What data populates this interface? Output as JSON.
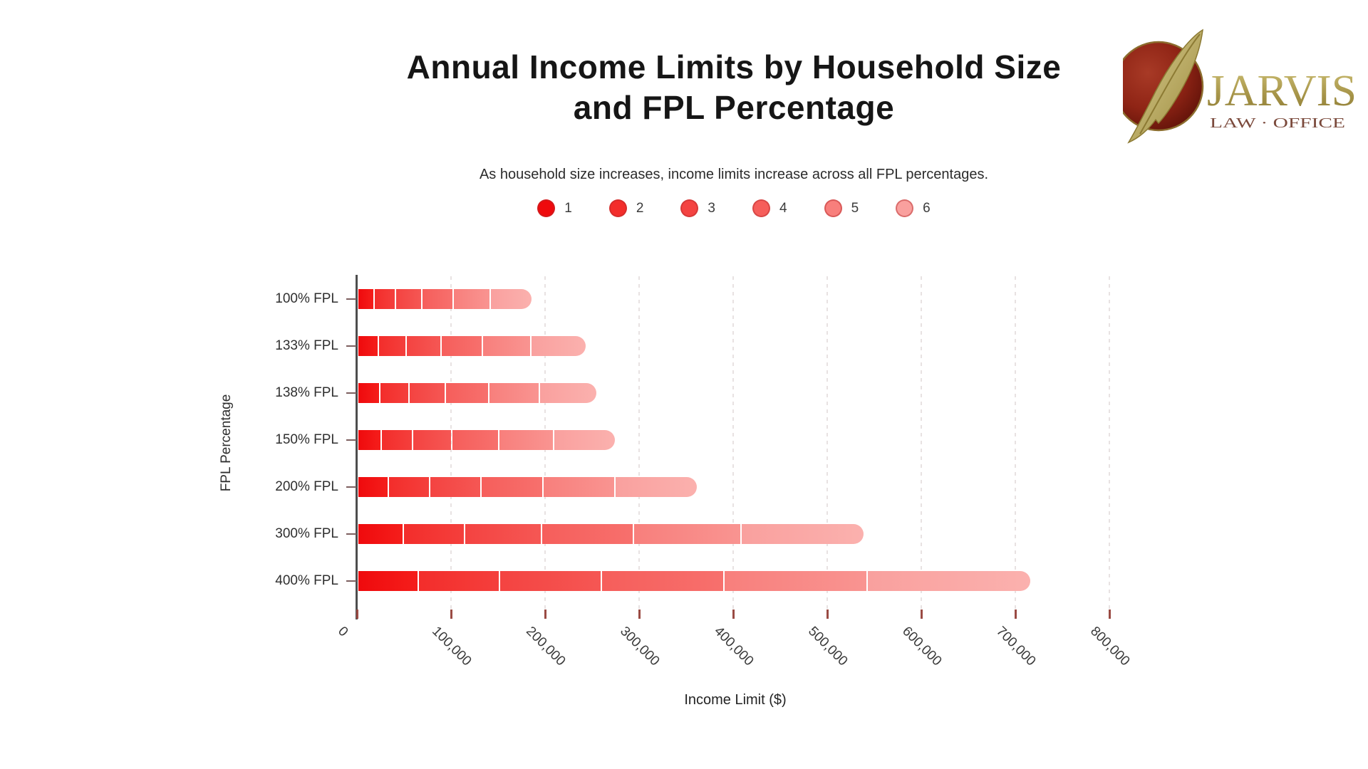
{
  "header": {
    "title_line1": "Annual Income Limits by Household Size",
    "title_line2": "and FPL Percentage",
    "subtitle": "As household size increases, income limits increase across all FPL percentages."
  },
  "logo": {
    "name": "JARVIS",
    "tagline": "LAW · OFFICE",
    "gold": "#a8964a",
    "gold_light": "#cdbf74",
    "gold_dark": "#8c7a33",
    "circle_red": "#8f2415",
    "circle_red_dark": "#5c1108",
    "tagline_color": "#7b4a3c"
  },
  "chart_data": {
    "type": "bar",
    "orientation": "horizontal",
    "stacked": true,
    "title": "Annual Income Limits by Household Size and FPL Percentage",
    "subtitle": "As household size increases, income limits increase across all FPL percentages.",
    "xlabel": "Income Limit ($)",
    "ylabel": "FPL Percentage",
    "xlim": [
      0,
      800000
    ],
    "x_tick_labels": [
      "0",
      "100,000",
      "200,000",
      "300,000",
      "400,000",
      "500,000",
      "600,000",
      "700,000",
      "800,000"
    ],
    "grid": "vertical-dashed",
    "legend_position": "top-center",
    "categories": [
      "100% FPL",
      "133% FPL",
      "138% FPL",
      "150% FPL",
      "200% FPL",
      "300% FPL",
      "400% FPL"
    ],
    "series": [
      {
        "name": "1",
        "color": "#ef0a0d",
        "color2": "#f51e1b",
        "values": [
          15650,
          20815,
          21597,
          23475,
          31300,
          46950,
          62600
        ]
      },
      {
        "name": "2",
        "color": "#f32d2b",
        "color2": "#f43f3c",
        "values": [
          21150,
          28130,
          29187,
          31725,
          42300,
          63450,
          84600
        ]
      },
      {
        "name": "3",
        "color": "#f44341",
        "color2": "#f55754",
        "values": [
          26650,
          35445,
          36777,
          39975,
          53300,
          79950,
          106600
        ]
      },
      {
        "name": "4",
        "color": "#f65e5b",
        "color2": "#f7706d",
        "values": [
          32150,
          42760,
          44367,
          48225,
          64300,
          96450,
          128600
        ]
      },
      {
        "name": "5",
        "color": "#f87f7c",
        "color2": "#f99491",
        "values": [
          37650,
          50075,
          51957,
          56475,
          75300,
          112950,
          150600
        ]
      },
      {
        "name": "6",
        "color": "#f9a09e",
        "color2": "#fbb1ae",
        "values": [
          43150,
          57390,
          59547,
          64725,
          86300,
          129450,
          172600
        ]
      }
    ],
    "colors": {
      "axis": "#4e4e4e",
      "tick": "#9a4b44",
      "y_tick": "#7d5f5f",
      "grid": "#e8e2e2",
      "text": "#2f2f2f"
    }
  }
}
